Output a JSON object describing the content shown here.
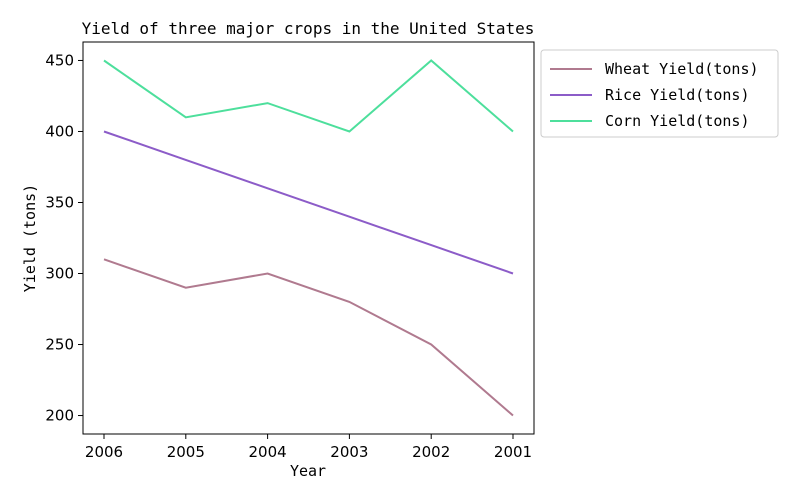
{
  "chart_data": {
    "type": "line",
    "title": "Yield of three major crops in the United States",
    "xlabel": "Year",
    "ylabel": "Yield (tons)",
    "categories": [
      "2006",
      "2005",
      "2004",
      "2003",
      "2002",
      "2001"
    ],
    "yticks": [
      200,
      250,
      300,
      350,
      400,
      450
    ],
    "ylim": [
      187,
      463
    ],
    "grid": false,
    "legend_position": "outside-top-right",
    "series": [
      {
        "name": "Wheat Yield(tons)",
        "color": "#b07a8f",
        "values": [
          310,
          290,
          300,
          280,
          250,
          200
        ]
      },
      {
        "name": "Rice Yield(tons)",
        "color": "#8c5cc8",
        "values": [
          400,
          380,
          360,
          340,
          320,
          300
        ]
      },
      {
        "name": "Corn Yield(tons)",
        "color": "#4ddf9c",
        "values": [
          450,
          410,
          420,
          400,
          450,
          400
        ]
      }
    ]
  }
}
